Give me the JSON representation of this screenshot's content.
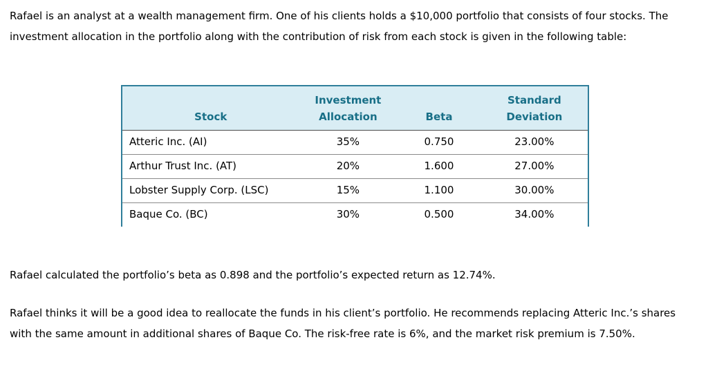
{
  "intro": {
    "text": "Rafael is an analyst at a wealth management firm. One of his clients holds a $10,000 portfolio that consists of four stocks. The investment allocation in the portfolio along with the contribution of risk from each stock is given in the following table:"
  },
  "table": {
    "headers": [
      {
        "line1": "",
        "line2": "Stock"
      },
      {
        "line1": "Investment",
        "line2": "Allocation"
      },
      {
        "line1": "",
        "line2": "Beta"
      },
      {
        "line1": "Standard",
        "line2": "Deviation"
      }
    ],
    "rows": [
      [
        "Atteric Inc. (AI)",
        "35%",
        "0.750",
        "23.00%"
      ],
      [
        "Arthur Trust Inc. (AT)",
        "20%",
        "1.600",
        "27.00%"
      ],
      [
        "Lobster Supply Corp. (LSC)",
        "15%",
        "1.100",
        "30.00%"
      ],
      [
        "Baque Co. (BC)",
        "30%",
        "0.500",
        "34.00%"
      ]
    ]
  },
  "paragraphs": {
    "beta": "Rafael calculated the portfolio’s beta as 0.898 and the portfolio’s expected return as 12.74%.",
    "reallocation": "Rafael thinks it will be a good idea to reallocate the funds in his client’s portfolio. He recommends replacing Atteric Inc.’s shares with the same amount in additional shares of Baque Co. The risk-free rate is 6%, and the market risk premium is 7.50%."
  },
  "colors": {
    "header_text": "#186f87",
    "header_background": "#d9edf4",
    "table_border": "#2f7e9a",
    "row_divider": "#8a8a8a",
    "body_text": "#000000"
  }
}
